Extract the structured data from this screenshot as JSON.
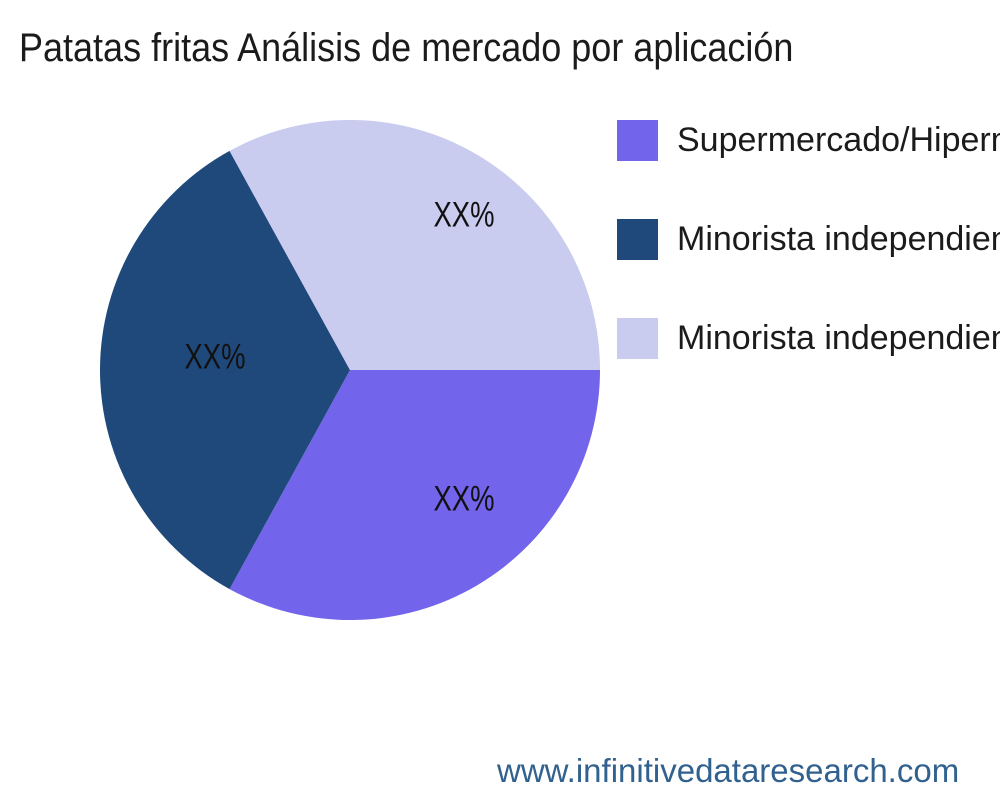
{
  "page": {
    "title": "Patatas fritas Análisis de mercado por aplicación",
    "footer_url": "www.infinitivedataresearch.com"
  },
  "chart_data": {
    "type": "pie",
    "title": "Patatas fritas Análisis de mercado por aplicación",
    "start_angle_deg": 0,
    "direction": "clockwise",
    "legend_position": "right",
    "background_color": "#ffffff",
    "text_color": "#1b1b1b",
    "footer": "www.infinitivedataresearch.com",
    "footer_color": "#31618e",
    "slices": [
      {
        "label": "Supermercado/Hiperm",
        "value": 33,
        "display_value": "XX%",
        "color": "#7264eb"
      },
      {
        "label": "Minorista independien",
        "value": 34,
        "display_value": "XX%",
        "color": "#20497b"
      },
      {
        "label": "Minorista independien",
        "value": 33,
        "display_value": "XX%",
        "color": "#c9cbef"
      }
    ]
  }
}
